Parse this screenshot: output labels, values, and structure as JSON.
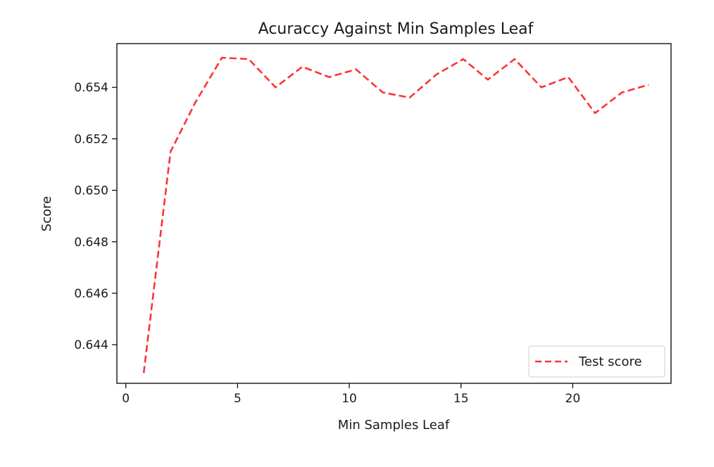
{
  "chart_data": {
    "type": "line",
    "title": "Acuraccy Against Min Samples Leaf",
    "xlabel": "Min Samples Leaf",
    "ylabel": "Score",
    "xlim": [
      -0.4,
      24.4
    ],
    "ylim": [
      0.6425,
      0.6557
    ],
    "xticks": [
      0,
      5,
      10,
      15,
      20
    ],
    "yticks": [
      0.644,
      0.646,
      0.648,
      0.65,
      0.652,
      0.654
    ],
    "ytick_labels": [
      "0.644",
      "0.646",
      "0.648",
      "0.650",
      "0.652",
      "0.654"
    ],
    "grid": false,
    "legend_position": "lower right",
    "series": [
      {
        "name": "Test score",
        "color": "#ff3333",
        "line_style": "dashed",
        "x": [
          0.8,
          2.0,
          3.1,
          4.3,
          5.5,
          6.7,
          7.9,
          9.1,
          10.3,
          11.5,
          12.7,
          13.9,
          15.1,
          16.2,
          17.4,
          18.6,
          19.8,
          21.0,
          22.2,
          23.4
        ],
        "y": [
          0.6429,
          0.6515,
          0.6534,
          0.65515,
          0.6551,
          0.654,
          0.6548,
          0.6544,
          0.6547,
          0.6538,
          0.6536,
          0.6545,
          0.6551,
          0.6543,
          0.6551,
          0.654,
          0.6544,
          0.653,
          0.6538,
          0.6541
        ]
      }
    ]
  }
}
